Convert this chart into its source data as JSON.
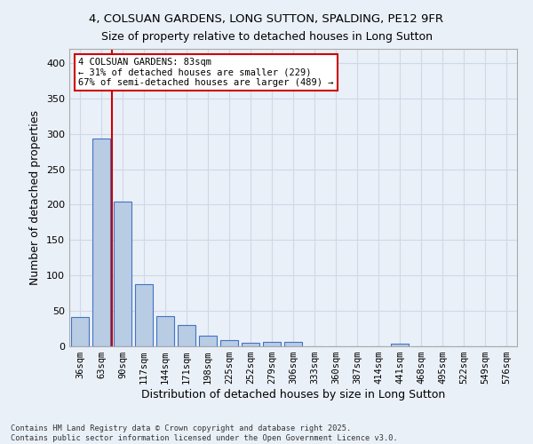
{
  "title_line1": "4, COLSUAN GARDENS, LONG SUTTON, SPALDING, PE12 9FR",
  "title_line2": "Size of property relative to detached houses in Long Sutton",
  "xlabel": "Distribution of detached houses by size in Long Sutton",
  "ylabel": "Number of detached properties",
  "footnote": "Contains HM Land Registry data © Crown copyright and database right 2025.\nContains public sector information licensed under the Open Government Licence v3.0.",
  "categories": [
    "36sqm",
    "63sqm",
    "90sqm",
    "117sqm",
    "144sqm",
    "171sqm",
    "198sqm",
    "225sqm",
    "252sqm",
    "279sqm",
    "306sqm",
    "333sqm",
    "360sqm",
    "387sqm",
    "414sqm",
    "441sqm",
    "468sqm",
    "495sqm",
    "522sqm",
    "549sqm",
    "576sqm"
  ],
  "values": [
    41,
    293,
    204,
    88,
    43,
    30,
    15,
    9,
    5,
    6,
    6,
    0,
    0,
    0,
    0,
    4,
    0,
    0,
    0,
    0,
    0
  ],
  "bar_color": "#b8cce4",
  "bar_edge_color": "#4472c4",
  "grid_color": "#d0d8e8",
  "background_color": "#eaf0f8",
  "red_line_x": 1.5,
  "annotation_text": "4 COLSUAN GARDENS: 83sqm\n← 31% of detached houses are smaller (229)\n67% of semi-detached houses are larger (489) →",
  "annotation_box_color": "#ffffff",
  "annotation_border_color": "#cc0000",
  "ylim": [
    0,
    420
  ],
  "yticks": [
    0,
    50,
    100,
    150,
    200,
    250,
    300,
    350,
    400
  ]
}
